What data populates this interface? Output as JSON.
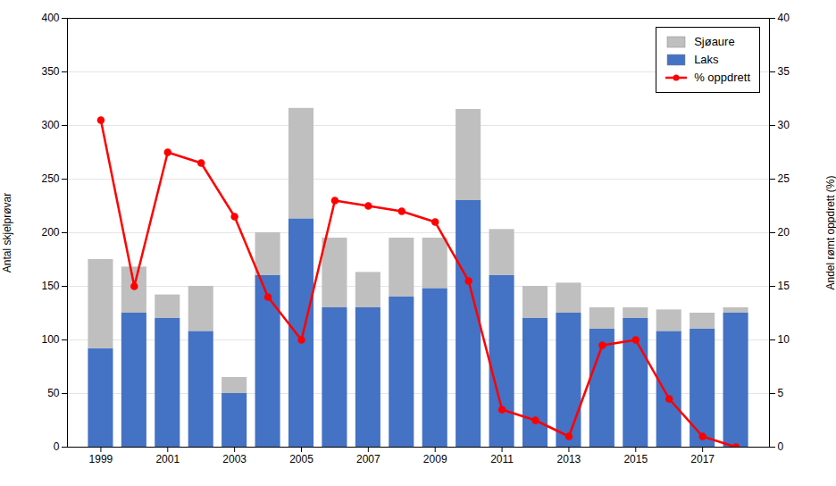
{
  "chart_data": {
    "type": "bar",
    "stacked": true,
    "x": [
      1999,
      2000,
      2001,
      2002,
      2003,
      2004,
      2005,
      2006,
      2007,
      2008,
      2009,
      2010,
      2011,
      2012,
      2013,
      2014,
      2015,
      2016,
      2017,
      2018
    ],
    "xlim": [
      1998,
      2019
    ],
    "xticks": [
      1999,
      2001,
      2003,
      2005,
      2007,
      2009,
      2011,
      2013,
      2015,
      2017
    ],
    "ylabel": "Antal skjelprøvar",
    "ylim": [
      0,
      400
    ],
    "yticks": [
      0,
      50,
      100,
      150,
      200,
      250,
      300,
      350,
      400
    ],
    "y2label": "Andel rømt oppdrett (%)",
    "y2lim": [
      0,
      40
    ],
    "y2ticks": [
      0,
      5,
      10,
      15,
      20,
      25,
      30,
      35,
      40
    ],
    "grid": true,
    "legend": "upper right",
    "series": [
      {
        "name": "Laks",
        "color": "#4472C4",
        "values": [
          92,
          125,
          120,
          108,
          50,
          160,
          213,
          130,
          130,
          140,
          148,
          230,
          160,
          120,
          125,
          110,
          120,
          108,
          110,
          125
        ]
      },
      {
        "name": "Sjøaure",
        "color": "#BFBFBF",
        "values": [
          83,
          43,
          22,
          42,
          15,
          40,
          103,
          65,
          33,
          55,
          47,
          85,
          43,
          30,
          28,
          20,
          10,
          20,
          15,
          5
        ]
      },
      {
        "name": "% oppdrett",
        "type": "line",
        "axis": "y2",
        "marker": "circle",
        "color": "#FF0000",
        "values": [
          30.5,
          15,
          27.5,
          26.5,
          21.5,
          14,
          10,
          23,
          22.5,
          22,
          21,
          15.5,
          3.5,
          2.5,
          1,
          9.5,
          10,
          4.5,
          1,
          0
        ]
      }
    ]
  }
}
